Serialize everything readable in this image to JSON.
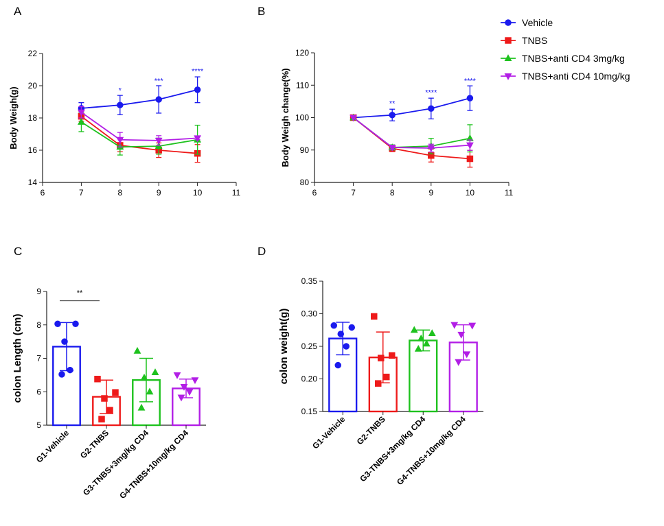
{
  "series_colors": {
    "vehicle": "#1a1aee",
    "tnbs": "#ee1a1a",
    "cd4_3": "#1ec21e",
    "cd4_10": "#b21ee6"
  },
  "legend": [
    {
      "label": "Vehicle",
      "marker": "circle",
      "color_key": "vehicle"
    },
    {
      "label": "TNBS",
      "marker": "square",
      "color_key": "tnbs"
    },
    {
      "label": "TNBS+anti CD4 3mg/kg",
      "marker": "triangle-up",
      "color_key": "cd4_3"
    },
    {
      "label": "TNBS+anti CD4 10mg/kg",
      "marker": "triangle-down",
      "color_key": "cd4_10"
    }
  ],
  "chart_data": [
    {
      "panel": "A",
      "type": "line",
      "ylabel": "Body Weigh(g)",
      "xlabel": "",
      "xlim": [
        6,
        11
      ],
      "ylim": [
        14,
        22
      ],
      "xticks": [
        6,
        7,
        8,
        9,
        10,
        11
      ],
      "yticks": [
        14,
        16,
        18,
        20,
        22
      ],
      "x": [
        7,
        8,
        9,
        10
      ],
      "series": [
        {
          "name": "Vehicle",
          "color_key": "vehicle",
          "marker": "circle",
          "values": [
            18.6,
            18.8,
            19.15,
            19.75
          ],
          "errors": [
            0.35,
            0.6,
            0.85,
            0.8
          ]
        },
        {
          "name": "TNBS",
          "color_key": "tnbs",
          "marker": "square",
          "values": [
            18.1,
            16.3,
            16.0,
            15.8
          ],
          "errors": [
            0.3,
            0.4,
            0.45,
            0.55
          ]
        },
        {
          "name": "TNBS+anti CD4 3mg/kg",
          "color_key": "cd4_3",
          "marker": "triangle-up",
          "values": [
            17.75,
            16.2,
            16.25,
            16.65
          ],
          "errors": [
            0.6,
            0.5,
            0.5,
            0.9
          ]
        },
        {
          "name": "TNBS+anti CD4 10mg/kg",
          "color_key": "cd4_10",
          "marker": "triangle-down",
          "values": [
            18.35,
            16.65,
            16.6,
            16.75
          ],
          "errors": [
            0.35,
            0.45,
            0.3,
            0.1
          ]
        }
      ],
      "annotations": [
        {
          "x": 8,
          "y": 19.55,
          "text": "*"
        },
        {
          "x": 9,
          "y": 20.15,
          "text": "***"
        },
        {
          "x": 10,
          "y": 20.75,
          "text": "****"
        }
      ]
    },
    {
      "panel": "B",
      "type": "line",
      "ylabel": "Body Weigh change(%)",
      "xlabel": "",
      "xlim": [
        6,
        11
      ],
      "ylim": [
        80,
        120
      ],
      "xticks": [
        6,
        7,
        8,
        9,
        10,
        11
      ],
      "yticks": [
        80,
        90,
        100,
        110,
        120
      ],
      "x": [
        7,
        8,
        9,
        10
      ],
      "series": [
        {
          "name": "Vehicle",
          "color_key": "vehicle",
          "marker": "circle",
          "values": [
            100,
            100.8,
            102.8,
            106
          ],
          "errors": [
            0,
            1.8,
            3.2,
            3.8
          ]
        },
        {
          "name": "TNBS",
          "color_key": "tnbs",
          "marker": "square",
          "values": [
            100,
            90.5,
            88.3,
            87.3
          ],
          "errors": [
            0,
            1.0,
            2.0,
            2.6
          ]
        },
        {
          "name": "TNBS+anti CD4 3mg/kg",
          "color_key": "cd4_3",
          "marker": "triangle-up",
          "values": [
            100,
            90.8,
            91.2,
            93.6
          ],
          "errors": [
            0,
            0.8,
            2.4,
            4.2
          ]
        },
        {
          "name": "TNBS+anti CD4 10mg/kg",
          "color_key": "cd4_10",
          "marker": "triangle-down",
          "values": [
            100,
            90.8,
            90.6,
            91.5
          ],
          "errors": [
            0,
            0.6,
            1.2,
            1.6
          ]
        }
      ],
      "annotations": [
        {
          "x": 8,
          "y": 103.6,
          "text": "**"
        },
        {
          "x": 9,
          "y": 107.0,
          "text": "****"
        },
        {
          "x": 10,
          "y": 110.6,
          "text": "****"
        }
      ]
    },
    {
      "panel": "C",
      "type": "bar",
      "ylabel": "colon Length (cm)",
      "xlabel": "",
      "ylim": [
        5,
        9
      ],
      "yticks": [
        5,
        6,
        7,
        8,
        9
      ],
      "categories": [
        "G1-Vehicle",
        "G2-TNBS",
        "G3-TNBS+3mg/kg CD4",
        "G4-TNBS+10mg/kg CD4"
      ],
      "values": [
        7.35,
        5.85,
        6.35,
        6.1
      ],
      "errors": [
        0.72,
        0.5,
        0.65,
        0.28
      ],
      "color_keys": [
        "vehicle",
        "tnbs",
        "cd4_3",
        "cd4_10"
      ],
      "markers": [
        "circle",
        "square",
        "triangle-up",
        "triangle-down"
      ],
      "points": [
        [
          8.03,
          8.03,
          7.5,
          6.65,
          6.52
        ],
        [
          6.38,
          5.98,
          5.8,
          5.45,
          5.18
        ],
        [
          7.22,
          6.58,
          6.42,
          6.0,
          5.52
        ],
        [
          6.5,
          6.35,
          6.15,
          6.0,
          5.83
        ]
      ],
      "significance": [
        {
          "from": 0,
          "to": 1,
          "y": 8.72,
          "text": "**"
        }
      ]
    },
    {
      "panel": "D",
      "type": "bar",
      "ylabel": "colon weight(g)",
      "xlabel": "",
      "ylim": [
        0.15,
        0.35
      ],
      "yticks": [
        0.15,
        0.2,
        0.25,
        0.3,
        0.35
      ],
      "ytick_labels": [
        "0.15",
        "0.20",
        "0.25",
        "0.30",
        "0.35"
      ],
      "categories": [
        "G1-Vehicle",
        "G2-TNBS",
        "G3-TNBS+3mg/kg CD4",
        "G4-TNBS+10mg/kg CD4"
      ],
      "values": [
        0.262,
        0.233,
        0.259,
        0.256
      ],
      "errors": [
        0.025,
        0.039,
        0.016,
        0.027
      ],
      "color_keys": [
        "vehicle",
        "tnbs",
        "cd4_3",
        "cd4_10"
      ],
      "markers": [
        "circle",
        "square",
        "triangle-up",
        "triangle-down"
      ],
      "points": [
        [
          0.282,
          0.279,
          0.269,
          0.25,
          0.221
        ],
        [
          0.296,
          0.236,
          0.232,
          0.203,
          0.193
        ],
        [
          0.275,
          0.27,
          0.262,
          0.254,
          0.246
        ],
        [
          0.283,
          0.282,
          0.268,
          0.238,
          0.226
        ]
      ],
      "significance": []
    }
  ]
}
